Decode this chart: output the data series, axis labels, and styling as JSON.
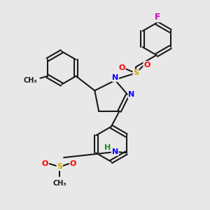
{
  "bg_color": "#e8e8e8",
  "bond_color": "#1a1a1a",
  "bond_width": 1.5,
  "atom_colors": {
    "N": "#0000ff",
    "O": "#ff0000",
    "S": "#ccaa00",
    "F": "#cc00cc",
    "H": "#1a8a1a",
    "C": "#1a1a1a"
  },
  "font_size": 8,
  "figsize": [
    3.0,
    3.0
  ],
  "dpi": 100
}
